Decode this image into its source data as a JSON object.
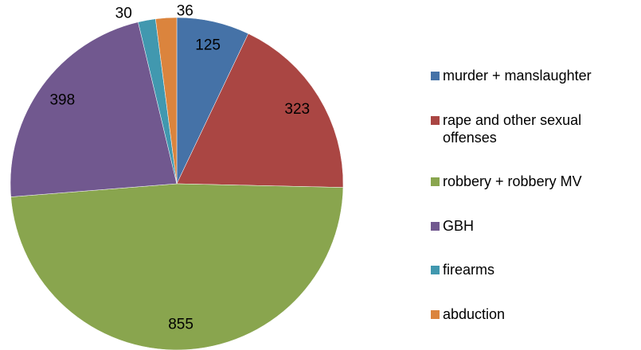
{
  "chart_data": {
    "type": "pie",
    "categories": [
      "murder + manslaughter",
      "rape and other sexual offenses",
      "robbery + robbery MV",
      "GBH",
      "firearms",
      "abduction"
    ],
    "values": [
      125,
      323,
      855,
      398,
      30,
      36
    ],
    "colors": [
      "#4572a7",
      "#aa4643",
      "#89a54e",
      "#71588f",
      "#4198af",
      "#db843d"
    ],
    "legend": "right"
  }
}
